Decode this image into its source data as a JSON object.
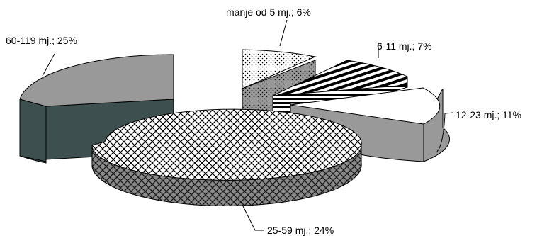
{
  "chart_data": {
    "type": "pie",
    "style": "3d-exploded",
    "title": "",
    "slices": [
      {
        "label": "manje od 5 mj.",
        "value": 6,
        "label_text": "manje od 5 mj.; 6%",
        "pattern": "dots",
        "top_color": "#ffffff",
        "side_color": "#9a9a9a"
      },
      {
        "label": "6-11 mj.",
        "value": 7,
        "label_text": "6-11 mj.; 7%",
        "pattern": "horizontal-stripes",
        "top_color": "#ffffff",
        "side_color": "#000000"
      },
      {
        "label": "12-23 mj.",
        "value": 11,
        "label_text": "12-23 mj.; 11%",
        "pattern": "solid",
        "top_color": "#ffffff",
        "side_color": "#999999"
      },
      {
        "label": "25-59 mj.",
        "value": 24,
        "label_text": "25-59 mj.; 24%",
        "pattern": "weave",
        "top_color": "#ffffff",
        "side_color": "#8a8a8a"
      },
      {
        "label": "60-119 mj.",
        "value": 25,
        "label_text": "60-119 mj.; 25%",
        "pattern": "solid",
        "top_color": "#999999",
        "side_color": "#3d4f4f"
      }
    ]
  }
}
